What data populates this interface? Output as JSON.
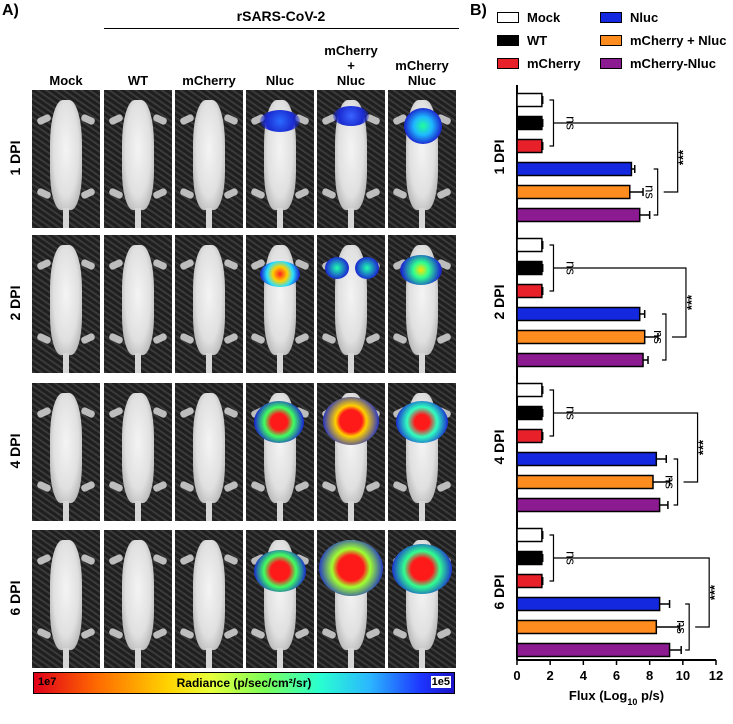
{
  "panel_a": {
    "letter": "A)",
    "virus_header": "rSARS-CoV-2",
    "columns": [
      "Mock",
      "WT",
      "mCherry",
      "Nluc",
      "mCherry\n+\nNluc",
      "mCherry\nNluc"
    ],
    "rows": [
      "1 DPI",
      "2 DPI",
      "4 DPI",
      "6 DPI"
    ],
    "colorbar": {
      "label": "Radiance (p/sec/cm²/sr)",
      "low": "1e7",
      "high": "1e5"
    }
  },
  "panel_b": {
    "letter": "B)"
  },
  "chart_data": {
    "type": "bar",
    "orientation": "horizontal",
    "xlabel": "Flux (Log10 p/s)",
    "xlabel_main": "Flux (Log",
    "xlabel_sub": "10",
    "xlabel_tail": " p/s)",
    "xlim": [
      0,
      12
    ],
    "xticks": [
      "0",
      "2",
      "4",
      "6",
      "8",
      "10",
      "12"
    ],
    "series_names": [
      "Mock",
      "WT",
      "mCherry",
      "Nluc",
      "mCherry + Nluc",
      "mCherry-Nluc"
    ],
    "colors": [
      "#ffffff",
      "#000000",
      "#e8202a",
      "#1428e0",
      "#ff8c1e",
      "#8c1a90"
    ],
    "groups": [
      {
        "label": "1 DPI",
        "values": [
          1.5,
          1.5,
          1.5,
          6.9,
          6.8,
          7.4
        ],
        "errors": [
          0.05,
          0.05,
          0.05,
          0.2,
          0.8,
          0.6
        ],
        "sig": [
          "ns",
          "***",
          "ns"
        ]
      },
      {
        "label": "2 DPI",
        "values": [
          1.5,
          1.5,
          1.5,
          7.4,
          7.7,
          7.6
        ],
        "errors": [
          0.05,
          0.05,
          0.05,
          0.3,
          0.8,
          0.3
        ],
        "sig": [
          "ns",
          "***",
          "ns"
        ]
      },
      {
        "label": "4 DPI",
        "values": [
          1.5,
          1.5,
          1.5,
          8.4,
          8.2,
          8.6
        ],
        "errors": [
          0.05,
          0.05,
          0.05,
          0.6,
          1.0,
          0.5
        ],
        "sig": [
          "ns",
          "***",
          "ns"
        ]
      },
      {
        "label": "6 DPI",
        "values": [
          1.5,
          1.5,
          1.5,
          8.6,
          8.4,
          9.2
        ],
        "errors": [
          0.05,
          0.05,
          0.05,
          0.6,
          1.4,
          0.7
        ],
        "sig": [
          "ns",
          "***",
          "ns"
        ]
      }
    ]
  }
}
